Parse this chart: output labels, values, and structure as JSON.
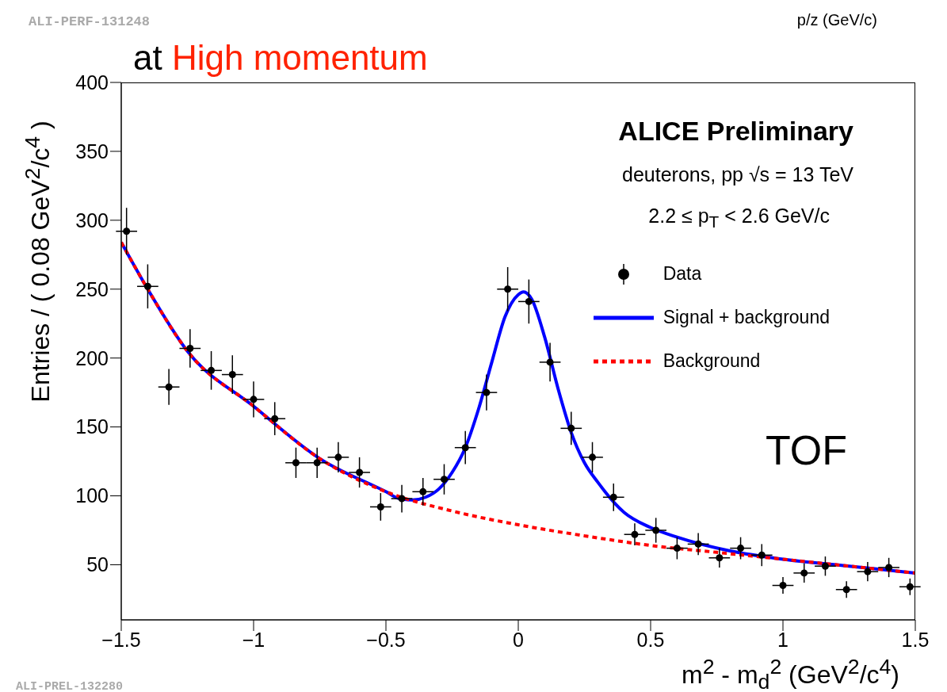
{
  "chart_data": {
    "type": "scatter",
    "title": "at High momentum",
    "xlabel": "m$^{2}$ - m$_{d}$$^{2}$ (GeV$^{2}$/c$^{4}$)",
    "ylabel": "Entries / ( 0.08 GeV$^{2}$/c$^{4}$ )",
    "annotations": [
      "ALICE Preliminary",
      "deuterons, pp √s = 13 TeV",
      "2.2 ≤ p$_{T}$ < 2.6 GeV/c",
      "TOF",
      "ALI-PERF-131248",
      "ALI-PREL-132280",
      "p/z (GeV/c)"
    ],
    "xlim": [
      -1.5,
      1.5
    ],
    "xticks": [
      {
        "value": -1.5,
        "label": "−1.5"
      },
      {
        "value": -1,
        "label": "−1"
      },
      {
        "value": -0.5,
        "label": "−0.5"
      },
      0,
      0.5,
      1,
      1.5
    ],
    "ylim": [
      10,
      400
    ],
    "yticks": [
      50,
      100,
      150,
      200,
      250,
      300,
      350,
      400
    ],
    "grid": false,
    "legend": "top right",
    "series": [
      {
        "name": "Data",
        "color": "#000000",
        "marker": "circle",
        "x": [
          -1.48,
          -1.4,
          -1.32,
          -1.24,
          -1.16,
          -1.08,
          -1.0,
          -0.92,
          -0.84,
          -0.76,
          -0.68,
          -0.6,
          -0.52,
          -0.44,
          -0.36,
          -0.28,
          -0.2,
          -0.12,
          -0.04,
          0.04,
          0.12,
          0.2,
          0.28,
          0.36,
          0.44,
          0.52,
          0.6,
          0.68,
          0.76,
          0.84,
          0.92,
          1.0,
          1.08,
          1.16,
          1.24,
          1.32,
          1.4,
          1.48
        ],
        "values": [
          292,
          252,
          179,
          207,
          191,
          188,
          170,
          156,
          124,
          124,
          128,
          117,
          92,
          98,
          103,
          112,
          135,
          175,
          250,
          241,
          197,
          149,
          128,
          99,
          72,
          75,
          62,
          65,
          55,
          62,
          57,
          35,
          44,
          49,
          32,
          45,
          48,
          34
        ],
        "errors": [
          17,
          16,
          13,
          14,
          14,
          14,
          13,
          12,
          11,
          11,
          11,
          11,
          10,
          10,
          10,
          11,
          12,
          13,
          16,
          16,
          14,
          12,
          11,
          10,
          8,
          9,
          8,
          8,
          7,
          8,
          8,
          6,
          7,
          7,
          6,
          7,
          7,
          6
        ],
        "xerrors": [
          0.04,
          0.04,
          0.04,
          0.04,
          0.04,
          0.04,
          0.04,
          0.04,
          0.04,
          0.04,
          0.04,
          0.04,
          0.04,
          0.04,
          0.04,
          0.04,
          0.04,
          0.04,
          0.04,
          0.04,
          0.04,
          0.04,
          0.04,
          0.04,
          0.04,
          0.04,
          0.04,
          0.04,
          0.04,
          0.04,
          0.04,
          0.04,
          0.04,
          0.04,
          0.04,
          0.04,
          0.04,
          0.04
        ]
      },
      {
        "name": "Signal + background",
        "type": "line",
        "color": "#0000ff",
        "line_style": "solid",
        "marker": "none",
        "x": [
          -1.5,
          -1.4,
          -1.25,
          -1.0,
          -0.75,
          -0.5,
          -0.45,
          -0.4,
          -0.35,
          -0.3,
          -0.25,
          -0.2,
          -0.15,
          -0.1,
          -0.05,
          0,
          0.02,
          0.05,
          0.1,
          0.15,
          0.2,
          0.25,
          0.3,
          0.4,
          0.5,
          0.6,
          0.8,
          1.0,
          1.25,
          1.5
        ],
        "values": [
          284,
          250,
          205,
          165,
          127,
          103,
          98,
          97,
          99,
          105,
          117,
          135,
          163,
          197,
          230,
          246,
          248,
          243,
          215,
          178,
          146,
          124,
          110,
          88,
          77,
          70,
          60,
          54,
          49,
          44
        ]
      },
      {
        "name": "Background",
        "type": "line",
        "color": "#ff0000",
        "line_style": "dotted",
        "marker": "none",
        "x": [
          -1.5,
          -1.4,
          -1.25,
          -1.0,
          -0.75,
          -0.5,
          -0.25,
          0,
          0.25,
          0.5,
          0.75,
          1.0,
          1.25,
          1.5
        ],
        "values": [
          284,
          250,
          205,
          165,
          127,
          103,
          89,
          79,
          71,
          64,
          59,
          54,
          49,
          44
        ]
      }
    ]
  }
}
